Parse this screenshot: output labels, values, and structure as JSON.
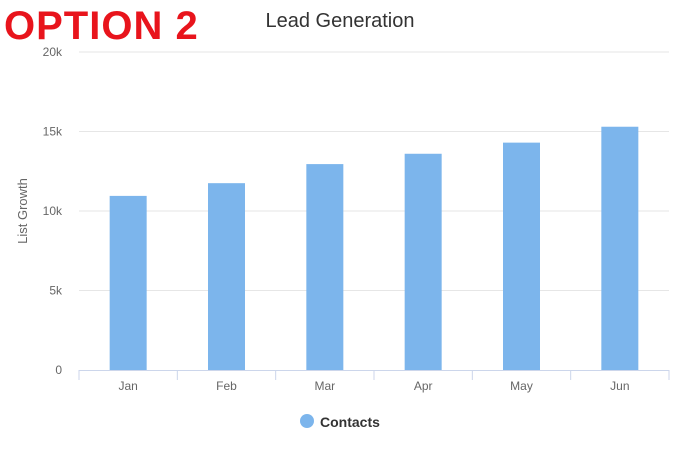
{
  "banner": {
    "text": "OPTION 2",
    "color": "#e8141c"
  },
  "chart_data": {
    "type": "bar",
    "title": "Lead Generation",
    "xlabel": "",
    "ylabel": "List Growth",
    "categories": [
      "Jan",
      "Feb",
      "Mar",
      "Apr",
      "May",
      "Jun"
    ],
    "series": [
      {
        "name": "Contacts",
        "values": [
          10950,
          11750,
          12950,
          13600,
          14300,
          15300
        ],
        "color": "#7cb5ec"
      }
    ],
    "ylim": [
      0,
      20000
    ],
    "yticks": [
      0,
      5000,
      10000,
      15000,
      20000
    ],
    "ytick_labels": [
      "0",
      "5k",
      "10k",
      "15k",
      "20k"
    ],
    "grid": true,
    "legend": "bottom-center"
  }
}
